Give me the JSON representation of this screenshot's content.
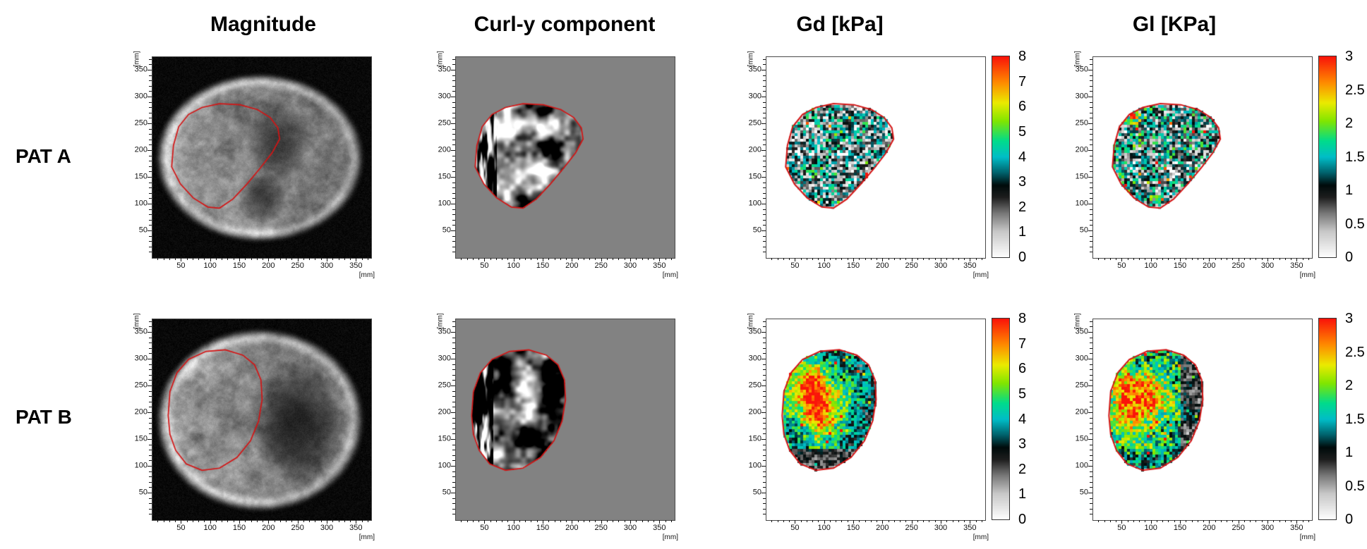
{
  "figure": {
    "column_titles": [
      "Magnitude",
      "Curl-y component",
      "Gd [kPa]",
      "Gl [KPa]"
    ],
    "row_labels": [
      "PAT A",
      "PAT B"
    ],
    "axis": {
      "unit": "[mm]",
      "tick_values": [
        50,
        100,
        150,
        200,
        250,
        300,
        350
      ],
      "domain_mm": [
        0,
        375
      ]
    },
    "colorbars": [
      {
        "column": "Gd [kPa]",
        "min": 0,
        "max": 8,
        "ticks": [
          "8",
          "7",
          "6",
          "5",
          "4",
          "3",
          "2",
          "1",
          "0"
        ]
      },
      {
        "column": "Gl [KPa]",
        "min": 0,
        "max": 3,
        "ticks": [
          "3",
          "2.5",
          "2",
          "1.5",
          "1",
          "0.5",
          "0"
        ]
      }
    ],
    "colors": {
      "roi_outline": "#d41414",
      "curl_background": "#828282",
      "magnitude_background": "#000000",
      "elastogram_background": "#ffffff"
    }
  },
  "chart_data": {
    "type": "heatmap",
    "grid": {
      "rows": [
        "PAT A",
        "PAT B"
      ],
      "columns": [
        "Magnitude",
        "Curl-y component",
        "Gd [kPa]",
        "Gl [KPa]"
      ]
    },
    "axes": {
      "x_label": "[mm]",
      "y_label": "[mm]",
      "x_ticks": [
        50,
        100,
        150,
        200,
        250,
        300,
        350
      ],
      "y_ticks": [
        50,
        100,
        150,
        200,
        250,
        300,
        350
      ],
      "x_range": [
        0,
        375
      ],
      "y_range": [
        0,
        375
      ]
    },
    "colorbars": [
      {
        "applies_to": "Gd [kPa]",
        "range": [
          0,
          8
        ],
        "unit": "kPa"
      },
      {
        "applies_to": "Gl [KPa]",
        "range": [
          0,
          3
        ],
        "unit": "KPa"
      }
    ],
    "palette_stops": [
      [
        0.0,
        255,
        255,
        255
      ],
      [
        0.13,
        200,
        200,
        200
      ],
      [
        0.22,
        120,
        120,
        120
      ],
      [
        0.3,
        30,
        30,
        30
      ],
      [
        0.36,
        0,
        12,
        12
      ],
      [
        0.42,
        0,
        95,
        105
      ],
      [
        0.5,
        0,
        190,
        200
      ],
      [
        0.58,
        0,
        220,
        140
      ],
      [
        0.68,
        130,
        230,
        0
      ],
      [
        0.77,
        235,
        235,
        0
      ],
      [
        0.87,
        255,
        140,
        0
      ],
      [
        1.0,
        250,
        20,
        10
      ]
    ],
    "roi_contours_mm": {
      "PAT A": [
        [
          33,
          170
        ],
        [
          36,
          210
        ],
        [
          45,
          245
        ],
        [
          62,
          268
        ],
        [
          85,
          281
        ],
        [
          115,
          288
        ],
        [
          150,
          286
        ],
        [
          180,
          277
        ],
        [
          202,
          262
        ],
        [
          215,
          243
        ],
        [
          218,
          222
        ],
        [
          205,
          196
        ],
        [
          185,
          168
        ],
        [
          162,
          138
        ],
        [
          138,
          110
        ],
        [
          115,
          93
        ],
        [
          95,
          95
        ],
        [
          70,
          112
        ],
        [
          48,
          138
        ]
      ],
      "PAT B": [
        [
          27,
          195
        ],
        [
          30,
          240
        ],
        [
          42,
          275
        ],
        [
          62,
          300
        ],
        [
          92,
          315
        ],
        [
          125,
          318
        ],
        [
          155,
          308
        ],
        [
          175,
          290
        ],
        [
          186,
          262
        ],
        [
          188,
          225
        ],
        [
          182,
          185
        ],
        [
          168,
          148
        ],
        [
          145,
          117
        ],
        [
          115,
          97
        ],
        [
          85,
          93
        ],
        [
          58,
          105
        ],
        [
          40,
          130
        ],
        [
          30,
          160
        ]
      ]
    },
    "panels": [
      {
        "row": "PAT A",
        "column": "Magnitude",
        "content": "Axial abdominal MR magnitude image (grayscale), liver region outlined in red"
      },
      {
        "row": "PAT A",
        "column": "Curl-y component",
        "content": "Grayscale curl-y shear-wave field shown only inside the red liver contour on a uniform gray background"
      },
      {
        "row": "PAT A",
        "column": "Gd [kPa]",
        "content": "Pixelated dynamic modulus elastogram inside the liver contour; mostly 1-5 kPa (gray/black/cyan) with sparse higher values",
        "value_range_kPa": [
          0,
          8
        ]
      },
      {
        "row": "PAT A",
        "column": "Gl [KPa]",
        "content": "Pixelated loss modulus elastogram; mostly 0.3-2 KPa (gray/cyan) with scattered yellow-red spots near the upper left",
        "value_range_KPa": [
          0,
          3
        ]
      },
      {
        "row": "PAT B",
        "column": "Magnitude",
        "content": "Axial abdominal MR magnitude image (grayscale), larger rounded liver region outlined in red"
      },
      {
        "row": "PAT B",
        "column": "Curl-y component",
        "content": "Grayscale curl-y shear-wave field inside the round liver contour on a uniform gray background"
      },
      {
        "row": "PAT B",
        "column": "Gd [kPa]",
        "content": "Elastogram with elevated stiffness: large red/orange region (6-8 kPa) in the upper-left of the liver, green/cyan elsewhere",
        "value_range_kPa": [
          0,
          8
        ]
      },
      {
        "row": "PAT B",
        "column": "Gl [KPa]",
        "content": "Elastogram with a large elevated red region (2.5-3 KPa) in the left/center of the liver, cyan-green elsewhere, grayer right edge",
        "value_range_KPa": [
          0,
          3
        ]
      }
    ]
  }
}
